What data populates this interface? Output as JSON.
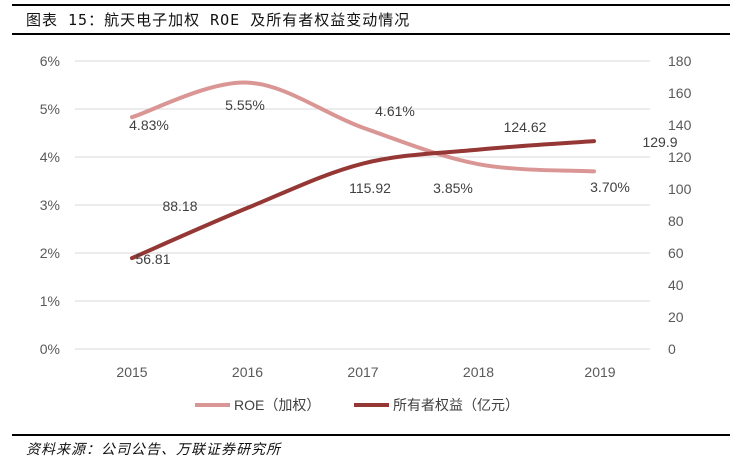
{
  "title": "图表 15：航天电子加权 ROE 及所有者权益变动情况",
  "source": "资料来源：公司公告、万联证券研究所",
  "chart_data": {
    "type": "line",
    "categories": [
      "2015",
      "2016",
      "2017",
      "2018",
      "2019"
    ],
    "series": [
      {
        "name": "ROE（加权）",
        "axis": "left",
        "color": "#DA9694",
        "values": [
          4.83,
          5.55,
          4.61,
          3.85,
          3.7
        ],
        "labels": [
          "4.83%",
          "5.55%",
          "4.61%",
          "3.85%",
          "3.70%"
        ]
      },
      {
        "name": "所有者权益（亿元）",
        "axis": "right",
        "color": "#953735",
        "values": [
          56.81,
          88.18,
          115.92,
          124.62,
          129.9
        ],
        "labels": [
          "56.81",
          "88.18",
          "115.92",
          "124.62",
          "129.9"
        ]
      }
    ],
    "left_axis": {
      "ylim": [
        0,
        6
      ],
      "ticks": [
        "0%",
        "1%",
        "2%",
        "3%",
        "4%",
        "5%",
        "6%"
      ]
    },
    "right_axis": {
      "ylim": [
        0,
        180
      ],
      "ticks": [
        "0",
        "20",
        "40",
        "60",
        "80",
        "100",
        "120",
        "140",
        "160",
        "180"
      ]
    },
    "grid": true,
    "legend": "bottom"
  }
}
